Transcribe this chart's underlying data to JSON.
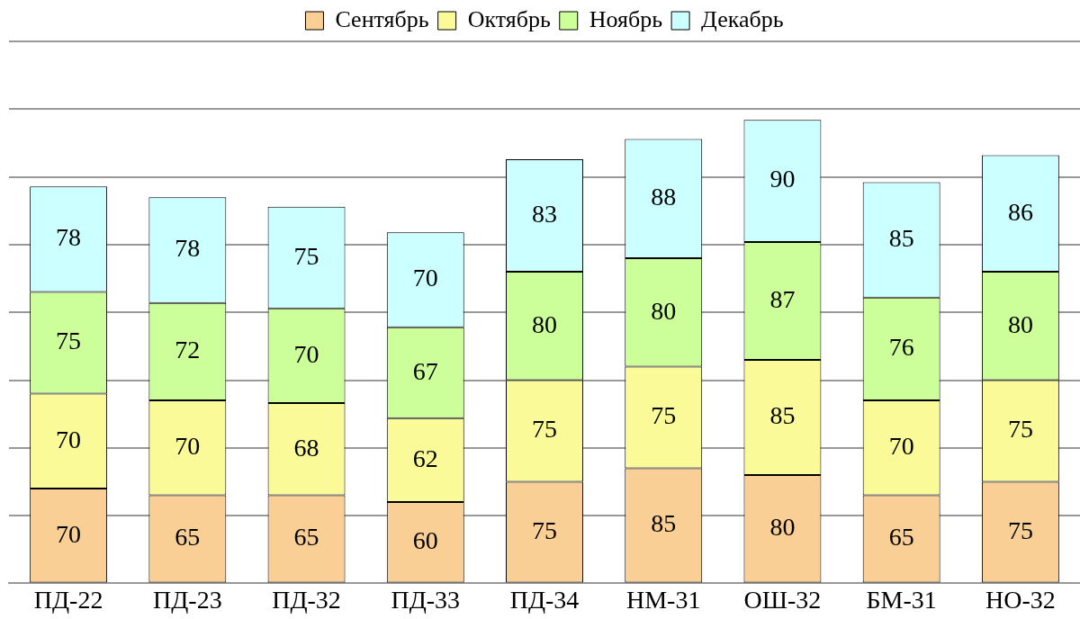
{
  "chart_data": {
    "type": "bar",
    "stacked": true,
    "categories": [
      "ПД-22",
      "ПД-23",
      "ПД-32",
      "ПД-33",
      "ПД-34",
      "НМ-31",
      "ОШ-32",
      "БМ-31",
      "НО-32"
    ],
    "series": [
      {
        "name": "Сентябрь",
        "color": "#f9cf96",
        "values": [
          70,
          65,
          65,
          60,
          75,
          85,
          80,
          65,
          75
        ]
      },
      {
        "name": "Октябрь",
        "color": "#fafa98",
        "values": [
          70,
          70,
          68,
          62,
          75,
          75,
          85,
          70,
          75
        ]
      },
      {
        "name": "Ноябрь",
        "color": "#ccff99",
        "values": [
          75,
          72,
          70,
          67,
          80,
          80,
          87,
          76,
          80
        ]
      },
      {
        "name": "Декабрь",
        "color": "#ccffff",
        "values": [
          78,
          78,
          75,
          70,
          83,
          88,
          90,
          85,
          86
        ]
      }
    ],
    "ylim": [
      0,
      400
    ],
    "tick_labels": "x",
    "grid": "y",
    "legend": "top",
    "data_labels": true
  }
}
